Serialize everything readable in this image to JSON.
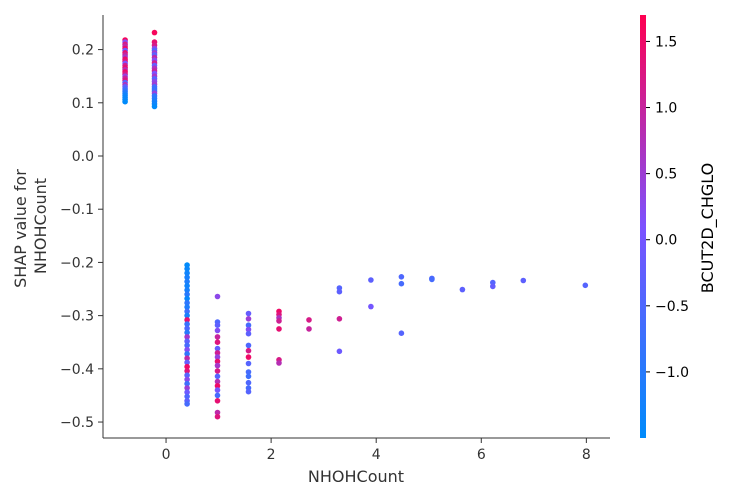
{
  "chart_data": {
    "type": "scatter",
    "title": "",
    "xlabel": "NHOHCount",
    "ylabel_lines": [
      "SHAP value for",
      "NHOHCount"
    ],
    "xlim": [
      -1.2,
      8.45
    ],
    "ylim": [
      -0.53,
      0.265
    ],
    "x_ticks": [
      0,
      2,
      4,
      6,
      8
    ],
    "x_tick_labels": [
      "0",
      "2",
      "4",
      "6",
      "8"
    ],
    "y_ticks": [
      0.2,
      0.1,
      0.0,
      -0.1,
      -0.2,
      -0.3,
      -0.4,
      -0.5
    ],
    "y_tick_labels": [
      "0.2",
      "0.1",
      "0.0",
      "−0.1",
      "−0.2",
      "−0.3",
      "−0.4",
      "−0.5"
    ],
    "grid": false,
    "colorbar": {
      "label": "BCUT2D_CHGLO",
      "range": [
        -1.5,
        1.7
      ],
      "ticks": [
        1.5,
        1.0,
        0.5,
        0.0,
        -0.5,
        -1.0
      ],
      "tick_labels": [
        "1.5",
        "1.0",
        "0.5",
        "0.0",
        "−0.5",
        "−1.0"
      ],
      "colors": {
        "low": "#008bfb",
        "mid": "#7c52ff",
        "high": "#ff0051"
      }
    },
    "points": [
      [
        -0.78,
        0.218,
        1.6
      ],
      [
        -0.78,
        0.214,
        0.2
      ],
      [
        -0.78,
        0.21,
        1.2
      ],
      [
        -0.78,
        0.206,
        0.9
      ],
      [
        -0.78,
        0.202,
        1.5
      ],
      [
        -0.78,
        0.198,
        -0.1
      ],
      [
        -0.78,
        0.194,
        1.4
      ],
      [
        -0.78,
        0.19,
        1.0
      ],
      [
        -0.78,
        0.186,
        0.6
      ],
      [
        -0.78,
        0.182,
        1.5
      ],
      [
        -0.78,
        0.178,
        1.3
      ],
      [
        -0.78,
        0.174,
        0.1
      ],
      [
        -0.78,
        0.17,
        1.1
      ],
      [
        -0.78,
        0.166,
        1.4
      ],
      [
        -0.78,
        0.162,
        0.8
      ],
      [
        -0.78,
        0.158,
        1.5
      ],
      [
        -0.78,
        0.154,
        1.2
      ],
      [
        -0.78,
        0.15,
        0.4
      ],
      [
        -0.78,
        0.146,
        1.0
      ],
      [
        -0.78,
        0.142,
        1.3
      ],
      [
        -0.78,
        0.138,
        -0.4
      ],
      [
        -0.78,
        0.134,
        0.7
      ],
      [
        -0.78,
        0.13,
        -0.3
      ],
      [
        -0.78,
        0.126,
        -0.6
      ],
      [
        -0.78,
        0.122,
        -0.9
      ],
      [
        -0.78,
        0.118,
        -1.1
      ],
      [
        -0.78,
        0.114,
        -1.3
      ],
      [
        -0.78,
        0.11,
        -1.4
      ],
      [
        -0.78,
        0.106,
        -1.4
      ],
      [
        -0.78,
        0.102,
        -1.5
      ],
      [
        -0.22,
        0.232,
        1.6
      ],
      [
        -0.22,
        0.214,
        1.4
      ],
      [
        -0.22,
        0.208,
        1.2
      ],
      [
        -0.22,
        0.202,
        0.3
      ],
      [
        -0.22,
        0.198,
        -0.5
      ],
      [
        -0.22,
        0.194,
        0.5
      ],
      [
        -0.22,
        0.19,
        -0.3
      ],
      [
        -0.22,
        0.185,
        0.9
      ],
      [
        -0.22,
        0.18,
        0.2
      ],
      [
        -0.22,
        0.175,
        1.1
      ],
      [
        -0.22,
        0.17,
        -0.2
      ],
      [
        -0.22,
        0.165,
        0.7
      ],
      [
        -0.22,
        0.16,
        1.0
      ],
      [
        -0.22,
        0.155,
        0.1
      ],
      [
        -0.22,
        0.15,
        0.6
      ],
      [
        -0.22,
        0.145,
        -0.4
      ],
      [
        -0.22,
        0.14,
        0.3
      ],
      [
        -0.22,
        0.135,
        0.5
      ],
      [
        -0.22,
        0.13,
        -0.6
      ],
      [
        -0.22,
        0.126,
        -0.8
      ],
      [
        -0.22,
        0.122,
        -0.7
      ],
      [
        -0.22,
        0.118,
        0.4
      ],
      [
        -0.22,
        0.113,
        -0.9
      ],
      [
        -0.22,
        0.108,
        -1.0
      ],
      [
        -0.22,
        0.103,
        -1.2
      ],
      [
        -0.22,
        0.098,
        -1.3
      ],
      [
        -0.22,
        0.093,
        -1.5
      ],
      [
        0.4,
        -0.205,
        -1.5
      ],
      [
        0.4,
        -0.212,
        -1.4
      ],
      [
        0.4,
        -0.22,
        -1.3
      ],
      [
        0.4,
        -0.228,
        -1.2
      ],
      [
        0.4,
        -0.236,
        -1.1
      ],
      [
        0.4,
        -0.244,
        -1.3
      ],
      [
        0.4,
        -0.252,
        -1.2
      ],
      [
        0.4,
        -0.26,
        -1.0
      ],
      [
        0.4,
        -0.268,
        -1.4
      ],
      [
        0.4,
        -0.276,
        -0.9
      ],
      [
        0.4,
        -0.284,
        -1.1
      ],
      [
        0.4,
        -0.292,
        -0.7
      ],
      [
        0.4,
        -0.3,
        -1.2
      ],
      [
        0.4,
        -0.308,
        1.4
      ],
      [
        0.4,
        -0.316,
        -0.8
      ],
      [
        0.4,
        -0.324,
        -0.5
      ],
      [
        0.4,
        -0.332,
        -1.0
      ],
      [
        0.4,
        -0.34,
        0.6
      ],
      [
        0.4,
        -0.348,
        -0.3
      ],
      [
        0.4,
        -0.356,
        -0.6
      ],
      [
        0.4,
        -0.364,
        0.2
      ],
      [
        0.4,
        -0.372,
        -0.9
      ],
      [
        0.4,
        -0.38,
        0.9
      ],
      [
        0.4,
        -0.388,
        -0.2
      ],
      [
        0.4,
        -0.396,
        1.5
      ],
      [
        0.4,
        -0.404,
        1.3
      ],
      [
        0.4,
        -0.412,
        -0.4
      ],
      [
        0.4,
        -0.42,
        0.3
      ],
      [
        0.4,
        -0.428,
        -0.7
      ],
      [
        0.4,
        -0.436,
        0.5
      ],
      [
        0.4,
        -0.444,
        -0.1
      ],
      [
        0.4,
        -0.452,
        -0.5
      ],
      [
        0.4,
        -0.46,
        -0.3
      ],
      [
        0.4,
        -0.466,
        -0.6
      ],
      [
        0.98,
        -0.264,
        0.3
      ],
      [
        0.98,
        -0.312,
        -0.5
      ],
      [
        0.98,
        -0.318,
        -0.3
      ],
      [
        0.98,
        -0.328,
        0.2
      ],
      [
        0.98,
        -0.34,
        1.0
      ],
      [
        0.98,
        -0.35,
        1.3
      ],
      [
        0.98,
        -0.362,
        -0.2
      ],
      [
        0.98,
        -0.37,
        1.1
      ],
      [
        0.98,
        -0.378,
        0.4
      ],
      [
        0.98,
        -0.386,
        1.4
      ],
      [
        0.98,
        -0.394,
        0.6
      ],
      [
        0.98,
        -0.404,
        1.2
      ],
      [
        0.98,
        -0.414,
        -0.4
      ],
      [
        0.98,
        -0.424,
        0.8
      ],
      [
        0.98,
        -0.432,
        1.5
      ],
      [
        0.98,
        -0.44,
        0.0
      ],
      [
        0.98,
        -0.45,
        -0.6
      ],
      [
        0.98,
        -0.46,
        1.4
      ],
      [
        0.98,
        -0.482,
        0.9
      ],
      [
        0.98,
        -0.49,
        1.3
      ],
      [
        1.57,
        -0.296,
        -0.2
      ],
      [
        1.57,
        -0.306,
        0.5
      ],
      [
        1.57,
        -0.318,
        -0.6
      ],
      [
        1.57,
        -0.326,
        0.2
      ],
      [
        1.57,
        -0.334,
        -0.3
      ],
      [
        1.57,
        -0.356,
        -0.5
      ],
      [
        1.57,
        -0.366,
        1.2
      ],
      [
        1.57,
        -0.378,
        1.5
      ],
      [
        1.57,
        -0.39,
        -0.4
      ],
      [
        1.57,
        -0.406,
        -0.6
      ],
      [
        1.57,
        -0.414,
        -0.7
      ],
      [
        1.57,
        -0.426,
        -0.5
      ],
      [
        1.57,
        -0.436,
        -0.6
      ],
      [
        1.57,
        -0.443,
        -0.4
      ],
      [
        2.15,
        -0.292,
        1.5
      ],
      [
        2.15,
        -0.298,
        1.3
      ],
      [
        2.15,
        -0.304,
        0.7
      ],
      [
        2.15,
        -0.31,
        1.1
      ],
      [
        2.15,
        -0.325,
        1.4
      ],
      [
        2.15,
        -0.383,
        1.2
      ],
      [
        2.15,
        -0.389,
        0.8
      ],
      [
        2.72,
        -0.308,
        1.2
      ],
      [
        2.72,
        -0.325,
        1.0
      ],
      [
        3.3,
        -0.248,
        -0.4
      ],
      [
        3.3,
        -0.255,
        -0.3
      ],
      [
        3.3,
        -0.306,
        1.1
      ],
      [
        3.3,
        -0.367,
        -0.1
      ],
      [
        3.9,
        -0.233,
        -0.3
      ],
      [
        3.9,
        -0.283,
        0.0
      ],
      [
        4.48,
        -0.227,
        -0.5
      ],
      [
        4.48,
        -0.24,
        -0.6
      ],
      [
        4.48,
        -0.333,
        -0.4
      ],
      [
        5.06,
        -0.23,
        -0.5
      ],
      [
        5.06,
        -0.232,
        -0.6
      ],
      [
        5.64,
        -0.251,
        -0.3
      ],
      [
        6.22,
        -0.238,
        -0.4
      ],
      [
        6.22,
        -0.245,
        -0.2
      ],
      [
        6.8,
        -0.234,
        -0.3
      ],
      [
        7.98,
        -0.243,
        -0.4
      ]
    ]
  }
}
